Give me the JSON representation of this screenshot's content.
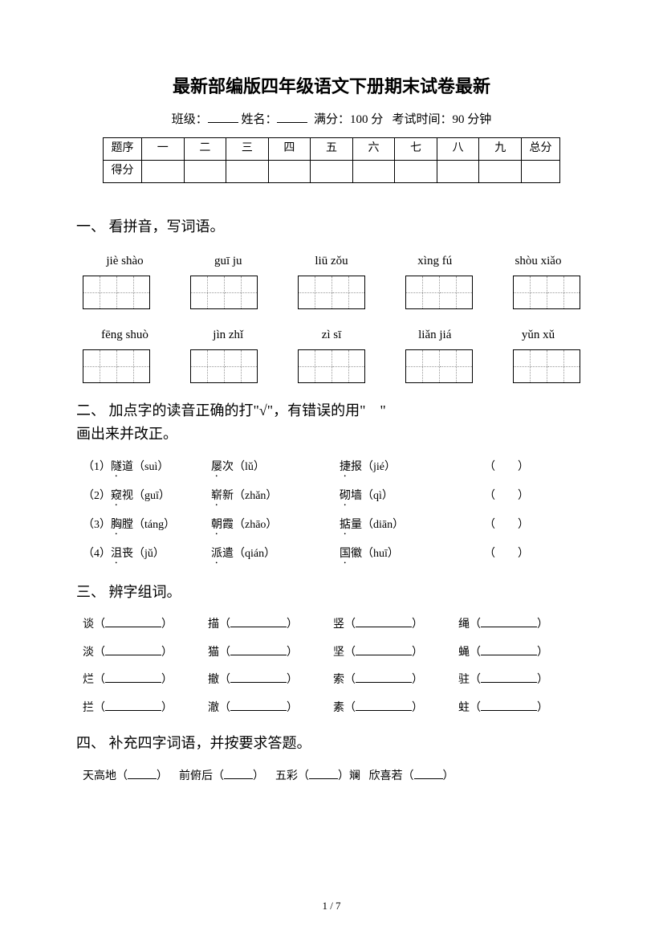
{
  "title": "最新部编版四年级语文下册期末试卷最新",
  "info": {
    "class_label": "班级：",
    "name_label": "姓名：",
    "full_score_label": "满分：",
    "full_score_value": "100 分",
    "exam_time_label": "考试时间：",
    "exam_time_value": "90 分钟"
  },
  "score_table": {
    "row1": [
      "题序",
      "一",
      "二",
      "三",
      "四",
      "五",
      "六",
      "七",
      "八",
      "九",
      "总分"
    ],
    "row2_label": "得分"
  },
  "section1": {
    "title": "一、 看拼音，写词语。",
    "row1_pinyin": [
      "jiè shào",
      "guī ju",
      "liū zǒu",
      "xìng fú",
      "shòu xiǎo"
    ],
    "row2_pinyin": [
      "fēng shuò",
      "jìn zhǐ",
      "zì sī",
      "liǎn jiá",
      "yǔn xǔ"
    ]
  },
  "section2": {
    "title_a": "二、 加点字的读音正确的打\"√\"，有错误的用\"",
    "title_b": "\"",
    "title_c": "画出来并改正。",
    "items": [
      {
        "idx": "（1）",
        "w1a": "隧",
        "w1b": "道（suì）",
        "w2a": "屡",
        "w2b": "次（lǔ）",
        "w3a": "捷",
        "w3b": "报（jié）"
      },
      {
        "idx": "（2）",
        "w1a": "窥",
        "w1b": "视（guī）",
        "w2a": "崭",
        "w2b": "新（zhǎn）",
        "w3a": "砌",
        "w3b": "墙（qì）"
      },
      {
        "idx": "（3）",
        "w1a": "胸",
        "w1b": "膛（táng）",
        "w2a": "朝",
        "w2b": "霞（zhāo）",
        "w3a": "掂",
        "w3b": "量（diān）"
      },
      {
        "idx": "（4）",
        "w1a": "沮",
        "w1b": "丧（jǔ）",
        "w2a": "派",
        "w2b": "遣（qián）",
        "w3a": "国",
        "w3b": "徽（huī）"
      }
    ],
    "bracket": "（　　）"
  },
  "section3": {
    "title": "三、 辨字组词。",
    "rows": [
      [
        "谈",
        "描",
        "竖",
        "绳"
      ],
      [
        "淡",
        "猫",
        "坚",
        "蝇"
      ],
      [
        "烂",
        "撤",
        "索",
        "驻"
      ],
      [
        "拦",
        "澈",
        "素",
        "蛀"
      ]
    ]
  },
  "section4": {
    "title": "四、 补充四字词语，并按要求答题。",
    "line": [
      {
        "pre": "天高地（",
        "post": "）"
      },
      {
        "pre": "前俯后（",
        "post": "）"
      },
      {
        "pre": "五彩（",
        "post": "）斓"
      },
      {
        "pre": "欣喜若（",
        "post": "）"
      }
    ]
  },
  "footer": "1 / 7"
}
